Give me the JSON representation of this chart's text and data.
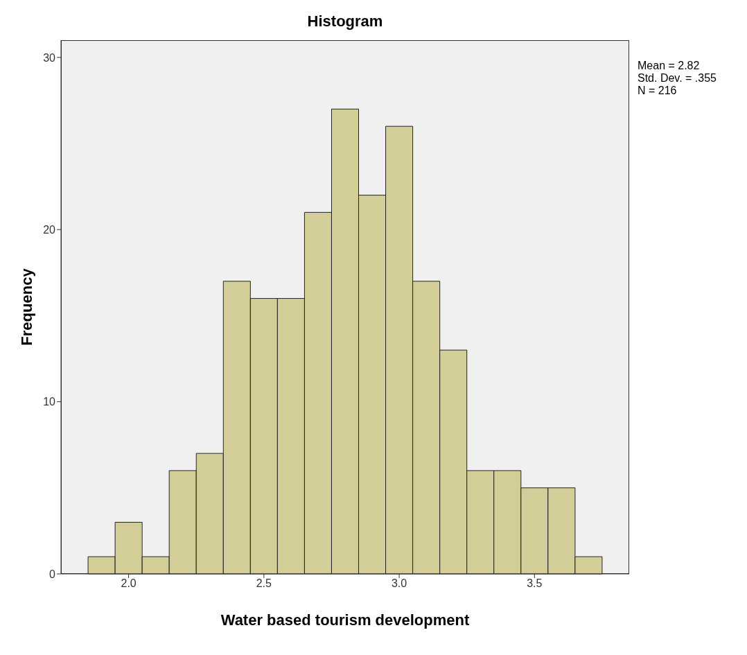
{
  "chart_data": {
    "type": "histogram",
    "title": "Histogram",
    "xlabel": "Water based tourism development",
    "ylabel": "Frequency",
    "bins": [
      1.85,
      1.95,
      2.05,
      2.15,
      2.25,
      2.35,
      2.45,
      2.55,
      2.65,
      2.75,
      2.85,
      2.95,
      3.05,
      3.15,
      3.25,
      3.35,
      3.45,
      3.55,
      3.65,
      3.75
    ],
    "values": [
      1,
      3,
      1,
      6,
      7,
      17,
      16,
      16,
      21,
      27,
      22,
      26,
      17,
      13,
      6,
      6,
      5,
      5,
      1
    ],
    "color": "#d3ce97",
    "xlim": [
      1.75,
      3.85
    ],
    "xticks": [
      {
        "value": 2,
        "label": "2.0"
      },
      {
        "value": 2.5,
        "label": "2.5"
      },
      {
        "value": 3,
        "label": "3.0"
      },
      {
        "value": 3.5,
        "label": "3.5"
      }
    ],
    "ylim": [
      0,
      31
    ],
    "yticks": [
      0,
      10,
      20,
      30
    ],
    "annotations": [
      "Mean = 2.82",
      "Std. Dev. = .355",
      "N = 216"
    ]
  }
}
